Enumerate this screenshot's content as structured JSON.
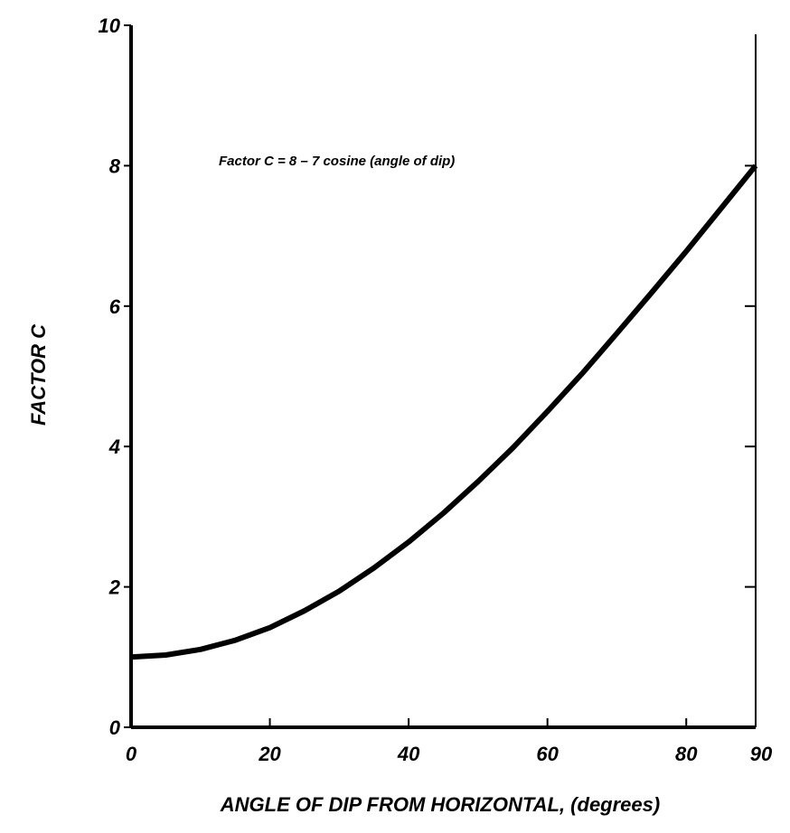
{
  "chart_data": {
    "type": "line",
    "title": "",
    "annotation": "Factor C  =  8 – 7 cosine (angle of dip)",
    "xlabel": "ANGLE OF DIP FROM HORIZONTAL, (degrees)",
    "ylabel": "FACTOR C",
    "xlim": [
      0,
      90
    ],
    "ylim": [
      0,
      10
    ],
    "xticks": [
      "0",
      "20",
      "40",
      "60",
      "80",
      "90"
    ],
    "xtick_values": [
      0,
      20,
      40,
      60,
      80,
      90
    ],
    "yticks": [
      "0",
      "2",
      "4",
      "6",
      "8",
      "10"
    ],
    "ytick_values": [
      0,
      2,
      4,
      6,
      8,
      10
    ],
    "grid": false,
    "line_color": "#000000",
    "series": [
      {
        "x": [
          0,
          5,
          10,
          15,
          20,
          25,
          30,
          35,
          40,
          45,
          50,
          55,
          60,
          65,
          70,
          75,
          80,
          85,
          90
        ],
        "y": [
          1.0,
          1.03,
          1.11,
          1.24,
          1.42,
          1.66,
          1.94,
          2.27,
          2.64,
          3.05,
          3.5,
          3.98,
          4.5,
          5.04,
          5.61,
          6.19,
          6.78,
          7.39,
          8.0
        ]
      }
    ]
  }
}
